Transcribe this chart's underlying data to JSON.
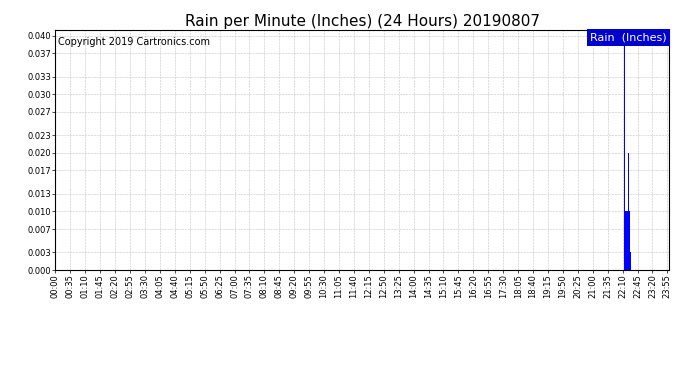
{
  "title": "Rain per Minute (Inches) (24 Hours) 20190807",
  "copyright_text": "Copyright 2019 Cartronics.com",
  "legend_label": "Rain  (Inches)",
  "legend_bg": "#0000cc",
  "legend_fg": "#ffffff",
  "bar_color": "#0000ff",
  "background_color": "#ffffff",
  "grid_color": "#bbbbbb",
  "ylim": [
    0,
    0.041
  ],
  "yticks": [
    0.0,
    0.003,
    0.007,
    0.01,
    0.013,
    0.017,
    0.02,
    0.023,
    0.027,
    0.03,
    0.033,
    0.037,
    0.04
  ],
  "total_minutes": 1440,
  "rain_events": [
    {
      "minute": 1335,
      "value": 0.04
    },
    {
      "minute": 1336,
      "value": 0.01
    },
    {
      "minute": 1337,
      "value": 0.01
    },
    {
      "minute": 1338,
      "value": 0.01
    },
    {
      "minute": 1339,
      "value": 0.01
    },
    {
      "minute": 1340,
      "value": 0.01
    },
    {
      "minute": 1341,
      "value": 0.01
    },
    {
      "minute": 1342,
      "value": 0.01
    },
    {
      "minute": 1343,
      "value": 0.003
    },
    {
      "minute": 1344,
      "value": 0.02
    },
    {
      "minute": 1345,
      "value": 0.01
    },
    {
      "minute": 1346,
      "value": 0.01
    },
    {
      "minute": 1347,
      "value": 0.01
    },
    {
      "minute": 1348,
      "value": 0.003
    },
    {
      "minute": 1349,
      "value": 0.003
    }
  ],
  "xtick_label_interval": 35,
  "title_fontsize": 11,
  "copyright_fontsize": 7,
  "tick_fontsize": 6,
  "legend_fontsize": 8
}
